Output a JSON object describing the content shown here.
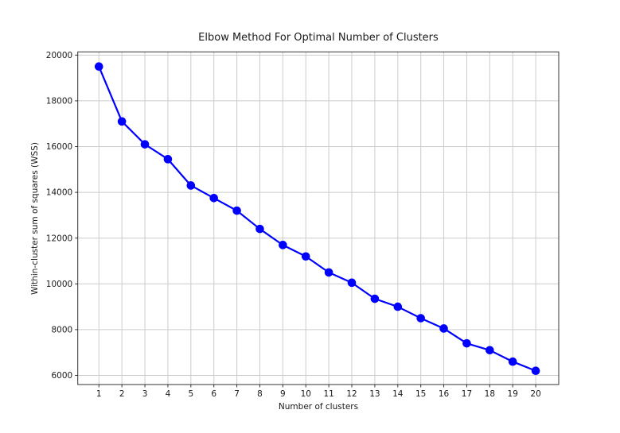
{
  "chart_data": {
    "type": "line",
    "title": "Elbow Method For Optimal Number of Clusters",
    "xlabel": "Number of clusters",
    "ylabel": "Within-cluster sum of squares (WSS)",
    "series_name": "WSS",
    "x": [
      1,
      2,
      3,
      4,
      5,
      6,
      7,
      8,
      9,
      10,
      11,
      12,
      13,
      14,
      15,
      16,
      17,
      18,
      19,
      20
    ],
    "y": [
      19500,
      17100,
      16100,
      15450,
      14300,
      13750,
      13200,
      12400,
      11700,
      11200,
      10500,
      10050,
      9350,
      9000,
      8500,
      8050,
      7400,
      7100,
      6600,
      6200
    ],
    "xticks": [
      1,
      2,
      3,
      4,
      5,
      6,
      7,
      8,
      9,
      10,
      11,
      12,
      13,
      14,
      15,
      16,
      17,
      18,
      19,
      20
    ],
    "yticks": [
      6000,
      8000,
      10000,
      12000,
      14000,
      16000,
      18000,
      20000
    ],
    "xlim": [
      0.08,
      21.0
    ],
    "ylim": [
      5600,
      20140
    ],
    "grid": true,
    "legend": false,
    "line_color": "#0000ff",
    "marker": "circle",
    "marker_size": 10.6,
    "grid_color": "#cccccc",
    "spine_color": "#333333",
    "text_color": "#1a1a1a",
    "background": "#ffffff"
  }
}
